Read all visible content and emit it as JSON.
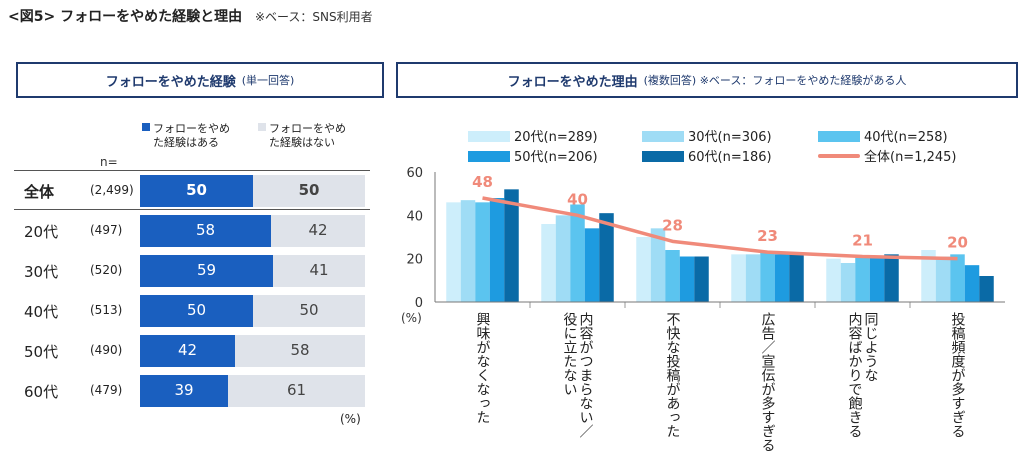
{
  "figure": {
    "title": "<図5> フォローをやめた経験と理由",
    "note": "※ベース：SNS利用者"
  },
  "left_panel": {
    "title": "フォローをやめた経験",
    "subtitle": "(単一回答)",
    "legend": {
      "yes": "フォローをやめた経験はある",
      "no": "フォローをやめた経験はない"
    },
    "n_label": "n=",
    "unit": "(%)",
    "colors": {
      "yes": "#1a5fbf",
      "no": "#dfe3ea"
    }
  },
  "right_panel": {
    "title": "フォローをやめた理由",
    "subtitle": "(複数回答) ※ベース：フォローをやめた経験がある人"
  },
  "chart_data": [
    {
      "type": "bar",
      "orientation": "horizontal-stacked",
      "categories": [
        "全体",
        "20代",
        "30代",
        "40代",
        "50代",
        "60代"
      ],
      "n": [
        "(2,499)",
        "(497)",
        "(520)",
        "(513)",
        "(490)",
        "(479)"
      ],
      "series": [
        {
          "name": "フォローをやめた経験はある",
          "values": [
            50,
            58,
            59,
            50,
            42,
            39
          ]
        },
        {
          "name": "フォローをやめた経験はない",
          "values": [
            50,
            42,
            41,
            50,
            58,
            61
          ]
        }
      ],
      "ylabel": "(%)"
    },
    {
      "type": "bar",
      "categories": [
        "興味がなくなった",
        "内容がつまらない／役に立たない",
        "不快な投稿があった",
        "広告／宣伝が多すぎる",
        "同じような内容ばかりで飽きる",
        "投稿頻度が多すぎる"
      ],
      "category_lines": [
        [
          "興味がなくなった"
        ],
        [
          "内容がつまらない／",
          "役に立たない"
        ],
        [
          "不快な投稿があった"
        ],
        [
          "広告／宣伝が多すぎる"
        ],
        [
          "同じような",
          "内容ばかりで飽きる"
        ],
        [
          "投稿頻度が多すぎる"
        ]
      ],
      "series": [
        {
          "name": "20代(n=289)",
          "color": "#cdeefb",
          "values": [
            46,
            36,
            30,
            22,
            20,
            24
          ]
        },
        {
          "name": "30代(n=306)",
          "color": "#9fdcf5",
          "values": [
            47,
            40,
            34,
            22,
            18,
            21
          ]
        },
        {
          "name": "40代(n=258)",
          "color": "#5bc4ef",
          "values": [
            46,
            45,
            24,
            23,
            21,
            22
          ]
        },
        {
          "name": "50代(n=206)",
          "color": "#1e9be0",
          "values": [
            48,
            34,
            21,
            22,
            21,
            17
          ]
        },
        {
          "name": "60代(n=186)",
          "color": "#0a6aa6",
          "values": [
            52,
            41,
            21,
            22,
            22,
            12
          ]
        }
      ],
      "line_series": {
        "name": "全体(n=1,245)",
        "color": "#f08a7a",
        "values": [
          48,
          40,
          28,
          23,
          21,
          20
        ]
      },
      "ylim": [
        0,
        60
      ],
      "yticks": [
        0,
        20,
        40,
        60
      ],
      "ylabel": "(%)"
    }
  ]
}
